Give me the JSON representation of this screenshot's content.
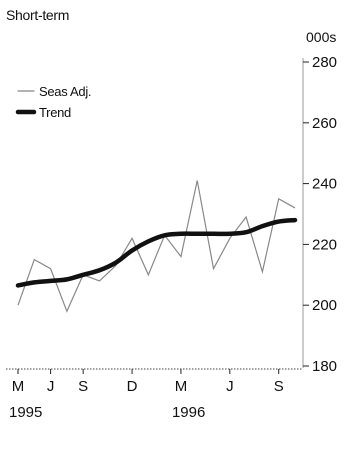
{
  "chart_data": {
    "type": "line",
    "title": "Short-term",
    "unit_label": "000s",
    "ylim": [
      180,
      280
    ],
    "y_ticks": [
      180,
      200,
      220,
      240,
      260,
      280
    ],
    "y_axis_position": "right",
    "grid": false,
    "legend_position": "top-left",
    "x_tick_labels": [
      "M",
      "J",
      "S",
      "D",
      "M",
      "J",
      "S"
    ],
    "x_tick_dates": [
      "1995-05",
      "1995-07",
      "1995-09",
      "1995-12",
      "1996-03",
      "1996-06",
      "1996-09"
    ],
    "year_labels": [
      {
        "label": "1995",
        "date": "1995-05"
      },
      {
        "label": "1996",
        "date": "1996-03"
      }
    ],
    "x": [
      "1995-05",
      "1995-06",
      "1995-07",
      "1995-08",
      "1995-09",
      "1995-10",
      "1995-11",
      "1995-12",
      "1996-01",
      "1996-02",
      "1996-03",
      "1996-04",
      "1996-05",
      "1996-06",
      "1996-07",
      "1996-08",
      "1996-09",
      "1996-10"
    ],
    "series": [
      {
        "name": "Seas Adj.",
        "style": "thin",
        "color": "#888888",
        "values": [
          200,
          215,
          212,
          198,
          210,
          208,
          213,
          222,
          210,
          223,
          216,
          241,
          212,
          222,
          229,
          211,
          235,
          232
        ]
      },
      {
        "name": "Trend",
        "style": "thick",
        "color": "#111111",
        "values": [
          206.5,
          207.5,
          208,
          208.5,
          210,
          211.5,
          214,
          218,
          221,
          223,
          223.5,
          223.5,
          223.5,
          223.5,
          224,
          226,
          227.5,
          228
        ]
      }
    ]
  }
}
